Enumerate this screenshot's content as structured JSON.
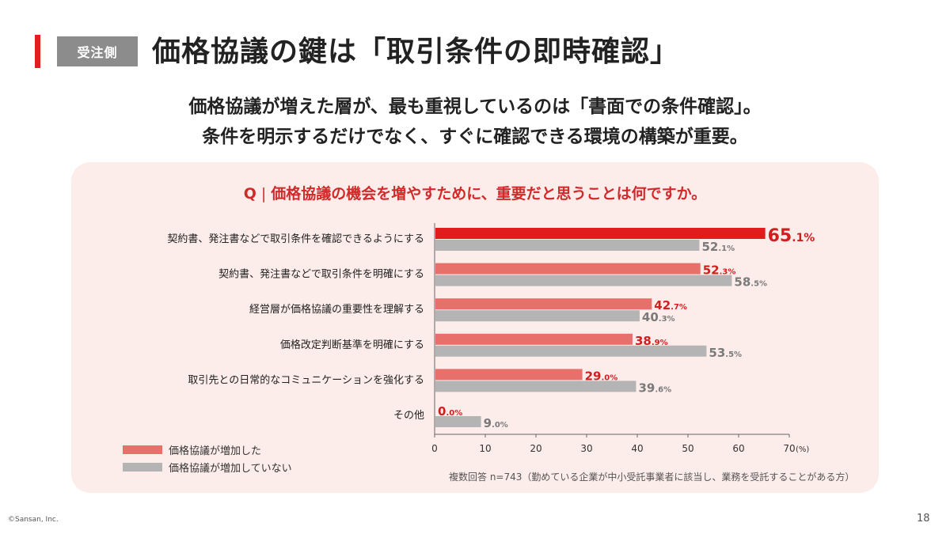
{
  "header": {
    "tag": "受注側",
    "title": "価格協議の鍵は「取引条件の即時確認」"
  },
  "subtitle": {
    "line1": "価格協議が増えた層が、最も重視しているのは「書面での条件確認」。",
    "line2": "条件を明示するだけでなく、すぐに確認できる環境の構築が重要。"
  },
  "question": {
    "prefix": "Q",
    "separator": "|",
    "text": "価格協議の機会を増やすために、重要だと思うことは何ですか。"
  },
  "chart_data": {
    "type": "bar",
    "orientation": "horizontal",
    "categories": [
      "契約書、発注書などで取引条件を確認できるようにする",
      "契約書、発注書などで取引条件を明確にする",
      "経営層が価格協議の重要性を理解する",
      "価格改定判断基準を明確にする",
      "取引先との日常的なコミュニケーションを強化する",
      "その他"
    ],
    "series": [
      {
        "name": "価格協議が増加した",
        "values": [
          65.1,
          52.3,
          42.7,
          38.9,
          29.0,
          0.0
        ],
        "color": "#e8706a"
      },
      {
        "name": "価格協議が増加していない",
        "values": [
          52.1,
          58.5,
          40.3,
          53.5,
          39.6,
          9.0
        ],
        "color": "#b4b4b4"
      }
    ],
    "highlight": {
      "series": 0,
      "index": 0,
      "color": "#e01c1c"
    },
    "xlim": [
      0,
      70
    ],
    "xticks": [
      0,
      10,
      20,
      30,
      40,
      50,
      60,
      70
    ],
    "x_unit": "(%)",
    "value_suffix": "%",
    "legend_position": "bottom-left",
    "grid": false
  },
  "legend": {
    "item1": "価格協議が増加した",
    "item2": "価格協議が増加していない",
    "color1": "#e8706a",
    "color2": "#b4b4b4"
  },
  "note": "複数回答 n=743（勤めている企業が中小受託事業者に該当し、業務を受託することがある方）",
  "footer": {
    "copyright": "©Sansan, Inc.",
    "page": "18"
  }
}
